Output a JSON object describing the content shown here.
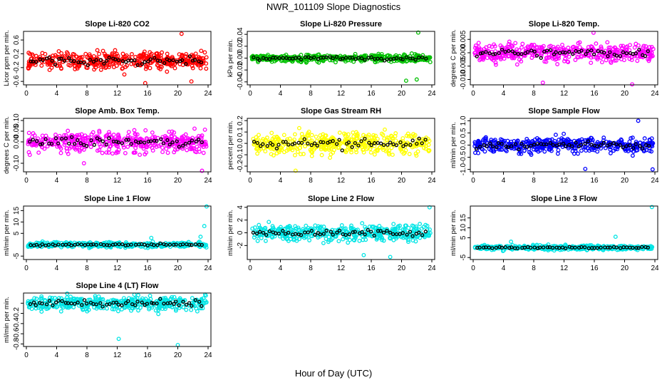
{
  "title": "NWR_101109  Slope Diagnostics",
  "xlabel": "Hour of Day (UTC)",
  "chart_data": [
    {
      "type": "scatter",
      "title": "Slope Li-820 CO2",
      "ylabel": "Licor ppm per min.",
      "color": "#ff0000",
      "xlim": [
        0,
        24
      ],
      "xticks": [
        0,
        4,
        8,
        12,
        16,
        20,
        24
      ],
      "ylim": [
        -0.7,
        0.85
      ],
      "yticks": [
        -0.6,
        -0.2,
        0.2,
        0.6
      ],
      "ytick_labels": [
        "-0.6",
        "-0.2",
        "0.2",
        "0.6"
      ],
      "spread": 0.22,
      "n": 420,
      "outliers": [
        [
          20.5,
          0.78
        ],
        [
          15.7,
          -0.65
        ],
        [
          21.8,
          -0.6
        ]
      ]
    },
    {
      "type": "scatter",
      "title": "Slope Li-820 Pressure",
      "ylabel": "kPa per min.",
      "color": "#00c000",
      "xlim": [
        0,
        24
      ],
      "xticks": [
        0,
        4,
        8,
        12,
        16,
        20,
        24
      ],
      "ylim": [
        -0.045,
        0.045
      ],
      "yticks": [
        -0.04,
        -0.02,
        0.0,
        0.02,
        0.04
      ],
      "ytick_labels": [
        "-0.04",
        "-0.02",
        "0.00",
        "0.02",
        "0.04"
      ],
      "spread": 0.005,
      "n": 420,
      "outliers": [
        [
          22.2,
          0.043
        ],
        [
          20.6,
          -0.038
        ],
        [
          22.0,
          -0.036
        ]
      ]
    },
    {
      "type": "scatter",
      "title": "Slope Li-820 Temp.",
      "ylabel": "degrees C per min.",
      "color": "#ff00ff",
      "xlim": [
        0,
        24
      ],
      "xticks": [
        0,
        4,
        8,
        12,
        16,
        20,
        24
      ],
      "ylim": [
        -0.012,
        0.008
      ],
      "yticks": [
        -0.01,
        -0.005,
        0.0,
        0.005
      ],
      "ytick_labels": [
        "-0.010",
        "-0.005",
        "0.000",
        "0.005"
      ],
      "spread": 0.0028,
      "n": 420,
      "outliers": [
        [
          15.9,
          0.0075
        ],
        [
          21.0,
          -0.0118
        ],
        [
          9.2,
          -0.0112
        ]
      ]
    },
    {
      "type": "scatter",
      "title": "Slope Amb. Box Temp.",
      "ylabel": "degrees C per min.",
      "color": "#ff00ff",
      "xlim": [
        0,
        24
      ],
      "xticks": [
        0,
        4,
        8,
        12,
        16,
        20,
        24
      ],
      "ylim": [
        -0.14,
        0.11
      ],
      "yticks": [
        -0.1,
        0.0,
        0.05,
        0.1
      ],
      "ytick_labels": [
        "-0.10",
        "0.00",
        "0.05",
        "0.10"
      ],
      "spread": 0.04,
      "n": 420,
      "outliers": [
        [
          23.2,
          -0.135
        ],
        [
          7.6,
          -0.1
        ]
      ]
    },
    {
      "type": "scatter",
      "title": "Slope Gas Stream RH",
      "ylabel": "percent per min.",
      "color": "#ffff00",
      "xlim": [
        0,
        24
      ],
      "xticks": [
        0,
        4,
        8,
        12,
        16,
        20,
        24
      ],
      "ylim": [
        -0.25,
        0.22
      ],
      "yticks": [
        -0.2,
        -0.1,
        0.0,
        0.1,
        0.2
      ],
      "ytick_labels": [
        "-0.2",
        "-0.1",
        "0.0",
        "0.1",
        "0.2"
      ],
      "spread": 0.08,
      "n": 420,
      "outliers": [
        [
          6.0,
          -0.24
        ]
      ]
    },
    {
      "type": "scatter",
      "title": "Slope Sample Flow",
      "ylabel": "ml/min per min.",
      "color": "#0000ff",
      "xlim": [
        0,
        24
      ],
      "xticks": [
        0,
        4,
        8,
        12,
        16,
        20,
        24
      ],
      "ylim": [
        -1.1,
        1.1
      ],
      "yticks": [
        -1.0,
        -0.5,
        0.0,
        0.5,
        1.0
      ],
      "ytick_labels": [
        "-1.0",
        "-0.5",
        "0.0",
        "0.5",
        "1.0"
      ],
      "spread": 0.25,
      "n": 420,
      "outliers": [
        [
          23.7,
          -1.0
        ],
        [
          21.8,
          1.0
        ],
        [
          14.8,
          -0.98
        ]
      ]
    },
    {
      "type": "scatter",
      "title": "Slope Line 1 Flow",
      "ylabel": "ml/min per min.",
      "color": "#00e5e5",
      "xlim": [
        0,
        24
      ],
      "xticks": [
        0,
        4,
        8,
        12,
        16,
        20,
        24
      ],
      "ylim": [
        -6.5,
        17
      ],
      "yticks": [
        -5,
        5,
        10,
        15
      ],
      "ytick_labels": [
        "-5",
        "5",
        "10",
        "15"
      ],
      "spread": 0.9,
      "n": 420,
      "outliers": [
        [
          23.8,
          16.8
        ],
        [
          23.5,
          8.2
        ],
        [
          16.5,
          3.0
        ],
        [
          23.0,
          3.5
        ]
      ]
    },
    {
      "type": "scatter",
      "title": "Slope Line 2 Flow",
      "ylabel": "ml/min per min.",
      "color": "#00e5e5",
      "xlim": [
        0,
        24
      ],
      "xticks": [
        0,
        4,
        8,
        12,
        16,
        20,
        24
      ],
      "ylim": [
        -4.2,
        4.2
      ],
      "yticks": [
        -2,
        0,
        2,
        4
      ],
      "ytick_labels": [
        "-2",
        "0",
        "2",
        "4"
      ],
      "spread": 1.0,
      "n": 420,
      "outliers": [
        [
          23.7,
          4.0
        ],
        [
          15.0,
          -3.5
        ],
        [
          18.5,
          -3.8
        ]
      ]
    },
    {
      "type": "scatter",
      "title": "Slope Line 3 Flow",
      "ylabel": "ml/min per min.",
      "color": "#00e5e5",
      "xlim": [
        0,
        24
      ],
      "xticks": [
        0,
        4,
        8,
        12,
        16,
        20,
        24
      ],
      "ylim": [
        -6,
        21
      ],
      "yticks": [
        -5,
        5,
        10,
        15
      ],
      "ytick_labels": [
        "-5",
        "5",
        "10",
        "15"
      ],
      "spread": 0.9,
      "n": 420,
      "outliers": [
        [
          23.6,
          20.5
        ],
        [
          18.8,
          5.5
        ],
        [
          5.0,
          3.0
        ]
      ]
    },
    {
      "type": "scatter",
      "title": "Slope Line 4 (LT) Flow",
      "ylabel": "ml/min per min.",
      "color": "#00e5e5",
      "xlim": [
        0,
        24
      ],
      "xticks": [
        0,
        4,
        8,
        12,
        16,
        20,
        24
      ],
      "ylim": [
        -0.85,
        0.2
      ],
      "yticks": [
        -0.8,
        -0.6,
        -0.4,
        -0.2,
        0.0
      ],
      "ytick_labels": [
        "-0.8",
        "-0.6",
        "-0.4",
        "-0.2",
        ""
      ],
      "spread": 0.12,
      "n": 420,
      "outliers": [
        [
          12.2,
          -0.7
        ],
        [
          20.0,
          -0.82
        ],
        [
          23.7,
          0.15
        ]
      ]
    }
  ]
}
